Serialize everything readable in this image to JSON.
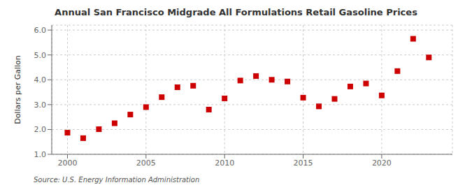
{
  "chart_data": {
    "type": "scatter",
    "title": "Annual San Francisco Midgrade All Formulations Retail Gasoline Prices",
    "ylabel": "Dollars per Gallon",
    "annotation": "Source: U.S. Energy Information Administration",
    "x": [
      2000,
      2001,
      2002,
      2003,
      2004,
      2005,
      2006,
      2007,
      2008,
      2009,
      2010,
      2011,
      2012,
      2013,
      2014,
      2015,
      2016,
      2017,
      2018,
      2019,
      2020,
      2021,
      2022,
      2023
    ],
    "values": [
      1.87,
      1.65,
      2.01,
      2.25,
      2.6,
      2.9,
      3.3,
      3.7,
      3.76,
      2.8,
      3.25,
      3.97,
      4.15,
      4.0,
      3.93,
      3.28,
      2.93,
      3.23,
      3.73,
      3.85,
      3.37,
      4.35,
      5.65,
      4.9
    ],
    "color": "#cc0000",
    "marker": "square",
    "xlim": [
      1999,
      2024.5
    ],
    "xticks": [
      2000,
      2005,
      2010,
      2015,
      2020
    ],
    "ylim": [
      1.0,
      6.2
    ],
    "yticks": [
      {
        "value": 1,
        "label": "1.0"
      },
      {
        "value": 2,
        "label": "2.0"
      },
      {
        "value": 3,
        "label": "3.0"
      },
      {
        "value": 4,
        "label": "4.0"
      },
      {
        "value": 5,
        "label": "5.0"
      },
      {
        "value": 6,
        "label": "6.0"
      }
    ],
    "grid": true
  }
}
